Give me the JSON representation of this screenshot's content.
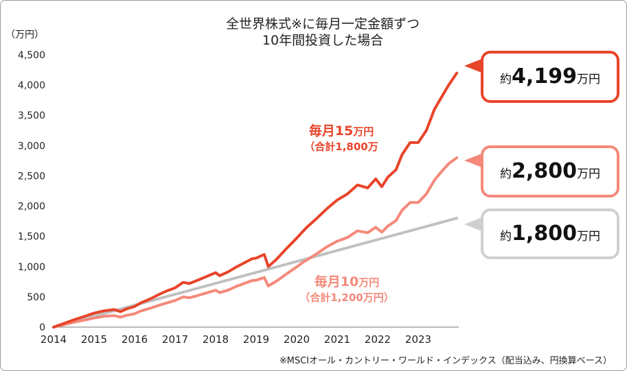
{
  "chart_data": {
    "type": "line",
    "title": [
      "全世界株式※に毎月一定金額ずつ",
      "10年間投資した場合"
    ],
    "ylabel": "（万円）",
    "ylim": [
      0,
      4500
    ],
    "yticks": [
      "0",
      "500",
      "1,000",
      "1,500",
      "2,000",
      "2,500",
      "3,000",
      "3,500",
      "4,000",
      "4,500"
    ],
    "xlim": [
      2014,
      2024
    ],
    "xticks": [
      "2014",
      "2015",
      "2016",
      "2017",
      "2018",
      "2019",
      "2020",
      "2021",
      "2022",
      "2023"
    ],
    "series": [
      {
        "color": "#e8442a",
        "x": [
          2014.0,
          2014.25,
          2014.5,
          2014.75,
          2015.0,
          2015.25,
          2015.5,
          2015.65,
          2015.8,
          2016.0,
          2016.15,
          2016.4,
          2016.6,
          2016.8,
          2017.0,
          2017.2,
          2017.35,
          2017.5,
          2017.75,
          2018.0,
          2018.1,
          2018.3,
          2018.5,
          2018.7,
          2018.9,
          2019.0,
          2019.2,
          2019.3,
          2019.5,
          2019.75,
          2020.0,
          2020.15,
          2020.25,
          2020.5,
          2020.75,
          2021.0,
          2021.25,
          2021.5,
          2021.75,
          2021.95,
          2022.1,
          2022.25,
          2022.45,
          2022.6,
          2022.8,
          2023.0,
          2023.2,
          2023.4,
          2023.6,
          2023.75,
          2023.95
        ],
        "values": [
          0,
          60,
          120,
          175,
          230,
          270,
          290,
          255,
          300,
          340,
          400,
          470,
          540,
          600,
          650,
          740,
          720,
          760,
          830,
          900,
          850,
          910,
          990,
          1060,
          1130,
          1140,
          1200,
          1000,
          1120,
          1300,
          1470,
          1580,
          1650,
          1800,
          1960,
          2100,
          2200,
          2350,
          2300,
          2450,
          2320,
          2480,
          2600,
          2850,
          3050,
          3050,
          3250,
          3600,
          3830,
          4000,
          4199
        ]
      },
      {
        "color": "#f4897a",
        "x": [
          2014.0,
          2014.25,
          2014.5,
          2014.75,
          2015.0,
          2015.25,
          2015.5,
          2015.65,
          2015.8,
          2016.0,
          2016.15,
          2016.4,
          2016.6,
          2016.8,
          2017.0,
          2017.2,
          2017.35,
          2017.5,
          2017.75,
          2018.0,
          2018.1,
          2018.3,
          2018.5,
          2018.7,
          2018.9,
          2019.0,
          2019.2,
          2019.3,
          2019.5,
          2019.75,
          2020.0,
          2020.15,
          2020.25,
          2020.5,
          2020.75,
          2021.0,
          2021.25,
          2021.5,
          2021.75,
          2021.95,
          2022.1,
          2022.25,
          2022.45,
          2022.6,
          2022.8,
          2023.0,
          2023.2,
          2023.4,
          2023.6,
          2023.75,
          2023.95
        ],
        "values": [
          0,
          40,
          80,
          115,
          150,
          180,
          190,
          165,
          195,
          220,
          265,
          315,
          360,
          400,
          440,
          500,
          485,
          510,
          560,
          610,
          570,
          610,
          670,
          720,
          770,
          775,
          820,
          680,
          760,
          880,
          995,
          1070,
          1110,
          1215,
          1330,
          1420,
          1480,
          1590,
          1560,
          1650,
          1570,
          1670,
          1760,
          1930,
          2060,
          2060,
          2200,
          2430,
          2590,
          2700,
          2800
        ]
      },
      {
        "color": "#c0c0c0",
        "x": [
          2014.0,
          2023.95
        ],
        "values": [
          0,
          1800
        ]
      }
    ]
  },
  "callouts": [
    {
      "prefix": "約",
      "value": "4,199",
      "suffix": "万円",
      "color": "#e8442a"
    },
    {
      "prefix": "約",
      "value": "2,800",
      "suffix": "万円",
      "color": "#f4897a"
    },
    {
      "prefix": "約",
      "value": "1,800",
      "suffix": "万円",
      "color": "#cfcfcf"
    }
  ],
  "labels": {
    "s15": {
      "head": "毎月15",
      "unit": "万円",
      "sub": "（合計1,800万"
    },
    "s10": {
      "head": "毎月10",
      "unit": "万円",
      "sub": "（合計1,200万円）"
    }
  },
  "note": "※MSCIオール・カントリー・ワールド・インデックス（配当込み、円換算ベース）"
}
